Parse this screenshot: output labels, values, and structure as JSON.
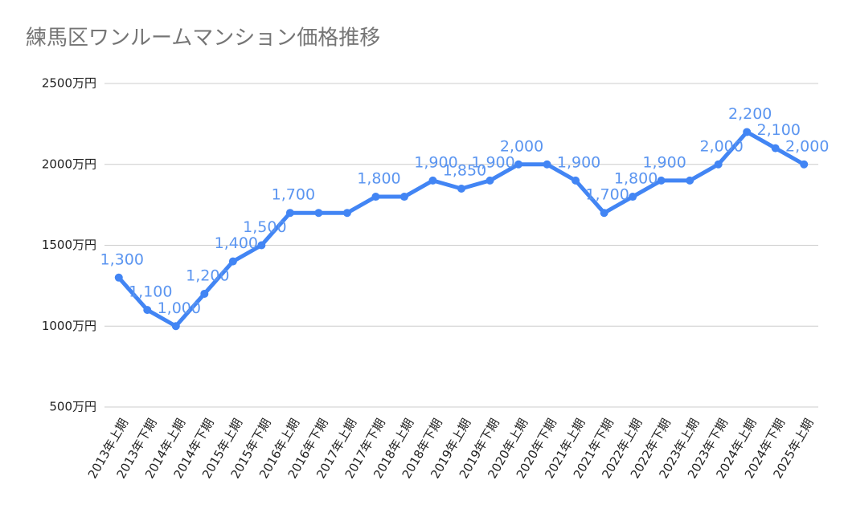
{
  "chart_data": {
    "type": "line",
    "title": "練馬区ワンルームマンション価格推移",
    "categories": [
      "2013年上期",
      "2013年下期",
      "2014年上期",
      "2014年下期",
      "2015年上期",
      "2015年下期",
      "2016年上期",
      "2016年下期",
      "2017年上期",
      "2017年下期",
      "2018年上期",
      "2018年下期",
      "2019年上期",
      "2019年下期",
      "2020年上期",
      "2020年下期",
      "2021年上期",
      "2021年下期",
      "2022年上期",
      "2022年下期",
      "2023年上期",
      "2023年下期",
      "2024年上期",
      "2024年下期",
      "2025年上期"
    ],
    "series": [
      {
        "color": "#4285f4",
        "values": [
          1300,
          1100,
          1000,
          1200,
          1400,
          1500,
          1700,
          1700,
          1700,
          1800,
          1800,
          1900,
          1850,
          1900,
          2000,
          2000,
          1900,
          1700,
          1800,
          1900,
          1900,
          2000,
          2200,
          2100,
          2000
        ],
        "value_labels": [
          "1,300",
          "1,100",
          "1,000",
          "1,200",
          "1,400",
          "1,500",
          "1,700",
          null,
          null,
          "1,800",
          null,
          "1,900",
          "1,850",
          "1,900",
          "2,000",
          null,
          "1,900",
          "1,700",
          "1,800",
          "1,900",
          null,
          "2,000",
          "2,200",
          "2,100",
          "2,000"
        ]
      }
    ],
    "ylim": [
      500,
      2500
    ],
    "yticks": [
      {
        "value": 500,
        "label": "500万円"
      },
      {
        "value": 1000,
        "label": "1000万円"
      },
      {
        "value": 1500,
        "label": "1500万円"
      },
      {
        "value": 2000,
        "label": "2000万円"
      },
      {
        "value": 2500,
        "label": "2500万円"
      }
    ],
    "grid": true
  }
}
